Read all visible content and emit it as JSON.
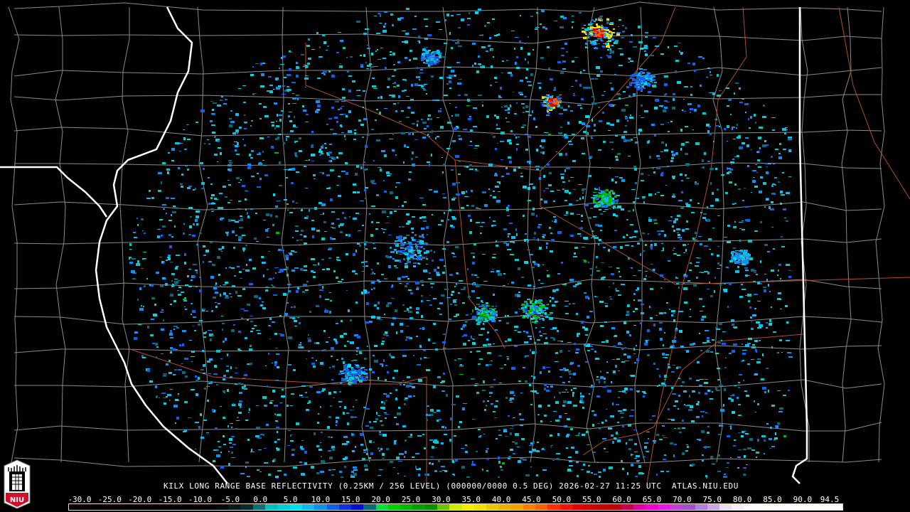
{
  "product": {
    "title": "KILX LONG RANGE BASE REFLECTIVITY (0.25KM / 256 LEVEL) (000000/0000 0.5 DEG) 2026-02-27 11:25 UTC  ATLAS.NIU.EDU",
    "station": "KILX",
    "elevation_deg": "0.5",
    "timestamp": "2026-02-27 11:25 UTC",
    "source": "ATLAS.NIU.EDU"
  },
  "logo": {
    "text": "NIU"
  },
  "colorbar": {
    "labels": [
      "-30.0",
      "-25.0",
      "-20.0",
      "-15.0",
      "-10.0",
      "-5.0",
      "0.0",
      "5.0",
      "10.0",
      "15.0",
      "20.0",
      "25.0",
      "30.0",
      "35.0",
      "40.0",
      "45.0",
      "50.0",
      "55.0",
      "60.0",
      "65.0",
      "70.0",
      "75.0",
      "80.0",
      "85.0",
      "90.0",
      "94.5"
    ],
    "colors": [
      "#000000",
      "#000000",
      "#000000",
      "#000000",
      "#000000",
      "#000000",
      "#000000",
      "#000000",
      "#000000",
      "#000000",
      "#000000",
      "#000000",
      "#020a0a",
      "#061a1c",
      "#0a2a2c",
      "#0e7070",
      "#00c0c0",
      "#00d0d8",
      "#00e0f0",
      "#10b8f0",
      "#1090f0",
      "#1060e8",
      "#1030e0",
      "#0010d0",
      "#0a6878",
      "#00e040",
      "#00d000",
      "#00b800",
      "#00a000",
      "#009000",
      "#70c000",
      "#d0e800",
      "#f0f000",
      "#f0e000",
      "#e8c800",
      "#e8b000",
      "#f8a000",
      "#f88000",
      "#f86000",
      "#ff3000",
      "#f81000",
      "#e00000",
      "#d00000",
      "#c80000",
      "#c00000",
      "#c8004c",
      "#e000a0",
      "#f000d0",
      "#e818e8",
      "#c040d8",
      "#a050c8",
      "#b080d8",
      "#c8a8e0",
      "#e8e0f0",
      "#f8f0f8",
      "#ffffff",
      "#ffffff",
      "#ffffff",
      "#ffffff",
      "#ffffff",
      "#ffffff",
      "#ffffff",
      "#ffffff"
    ]
  },
  "colors": {
    "state_border": "#ffffff",
    "county_border": "#8a8a8a",
    "highway": "#b0502a"
  }
}
